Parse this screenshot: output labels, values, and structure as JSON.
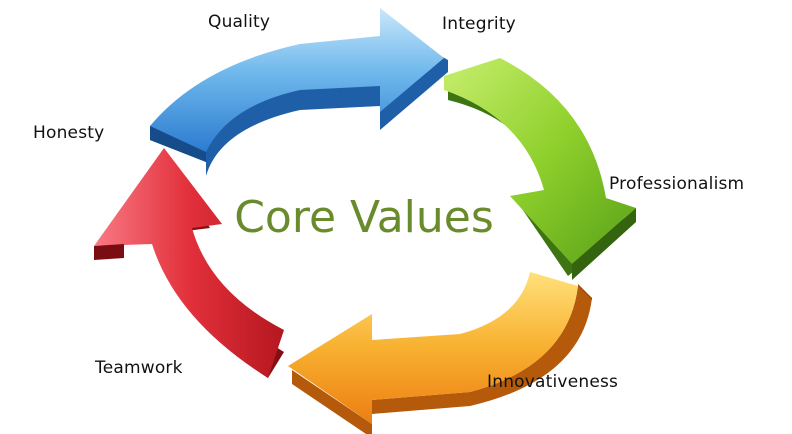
{
  "diagram": {
    "title": "Core Values",
    "title_color": "#6a8b2c",
    "labels": {
      "quality": "Quality",
      "integrity": "Integrity",
      "professionalism": "Professionalism",
      "innovativeness": "Innovativeness",
      "teamwork": "Teamwork",
      "honesty": "Honesty"
    },
    "arrows": [
      {
        "name": "blue",
        "top": "#a6d4f3",
        "mid": "#52a6e4",
        "side": "#1f5fa8"
      },
      {
        "name": "green",
        "top": "#b8e35c",
        "mid": "#7cc424",
        "side": "#3e7412"
      },
      {
        "name": "orange",
        "top": "#ffd35b",
        "mid": "#f5a11f",
        "side": "#b45a0a"
      },
      {
        "name": "red",
        "top": "#f5646e",
        "mid": "#d9202c",
        "side": "#850e15"
      }
    ]
  }
}
